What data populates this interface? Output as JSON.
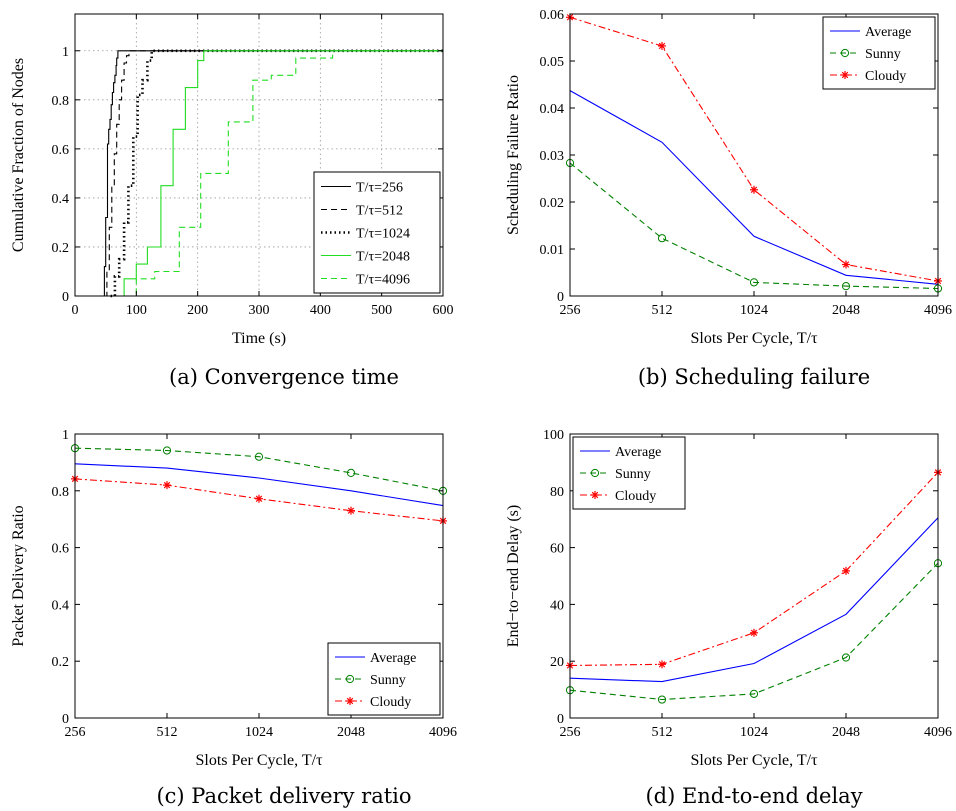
{
  "chart_data": [
    {
      "id": "a",
      "type": "line",
      "caption": "(a) Convergence time",
      "xlabel": "Time (s)",
      "ylabel": "Cumulative Fraction of Nodes",
      "xlim": [
        0,
        600
      ],
      "ylim": [
        0,
        1.15
      ],
      "xticks": [
        0,
        100,
        200,
        300,
        400,
        500,
        600
      ],
      "yticks": [
        0,
        0.2,
        0.4,
        0.6,
        0.8,
        1
      ],
      "x_scale": "linear",
      "grid": true,
      "legend_position": "bottom-right",
      "series": [
        {
          "name": "T/τ=256",
          "color": "#000000",
          "style": "solid",
          "x": [
            46,
            48,
            50,
            53,
            55,
            57,
            59,
            61,
            63,
            65,
            67,
            68,
            70,
            600
          ],
          "y": [
            0,
            0.12,
            0.32,
            0.62,
            0.68,
            0.72,
            0.78,
            0.83,
            0.87,
            0.9,
            0.94,
            0.97,
            1.0,
            1.0
          ]
        },
        {
          "name": "T/τ=512",
          "color": "#000000",
          "style": "dashed",
          "x": [
            49,
            52,
            56,
            60,
            64,
            68,
            72,
            76,
            80,
            84,
            88,
            600
          ],
          "y": [
            0,
            0.1,
            0.28,
            0.45,
            0.58,
            0.7,
            0.8,
            0.88,
            0.95,
            0.98,
            1.0,
            1.0
          ]
        },
        {
          "name": "T/τ=1024",
          "color": "#000000",
          "style": "dotted",
          "x": [
            58,
            65,
            72,
            80,
            87,
            95,
            102,
            110,
            118,
            125,
            600
          ],
          "y": [
            0,
            0.08,
            0.15,
            0.3,
            0.45,
            0.65,
            0.82,
            0.88,
            0.96,
            1.0,
            1.0
          ]
        },
        {
          "name": "T/τ=2048",
          "color": "#22dd22",
          "style": "solid",
          "x": [
            55,
            80,
            100,
            118,
            140,
            160,
            180,
            200,
            210,
            600
          ],
          "y": [
            0,
            0.07,
            0.13,
            0.2,
            0.45,
            0.68,
            0.85,
            0.96,
            1.0,
            1.0
          ]
        },
        {
          "name": "T/τ=4096",
          "color": "#22dd22",
          "style": "dashed",
          "x": [
            70,
            100,
            130,
            170,
            205,
            250,
            290,
            320,
            360,
            420,
            600
          ],
          "y": [
            0,
            0.07,
            0.1,
            0.28,
            0.5,
            0.71,
            0.88,
            0.9,
            0.97,
            1.0,
            1.0
          ]
        }
      ]
    },
    {
      "id": "b",
      "type": "line",
      "caption": "(b) Scheduling failure",
      "xlabel": "Slots Per Cycle, T/τ",
      "ylabel": "Scheduling Failure Ratio",
      "categories": [
        "256",
        "512",
        "1024",
        "2048",
        "4096"
      ],
      "ylim": [
        0,
        0.06
      ],
      "yticks": [
        "0",
        "0.01",
        "0.02",
        "0.03",
        "0.04",
        "0.05",
        "0.06"
      ],
      "ytick_values": [
        0,
        0.01,
        0.02,
        0.03,
        0.04,
        0.05,
        0.06
      ],
      "grid": false,
      "legend_position": "top-right",
      "series": [
        {
          "name": "Average",
          "color": "#0000ff",
          "style": "solid",
          "marker": "none",
          "values": [
            0.0437,
            0.0327,
            0.0127,
            0.0044,
            0.0025
          ]
        },
        {
          "name": "Sunny",
          "color": "#008000",
          "style": "dashed",
          "marker": "circle",
          "values": [
            0.0283,
            0.0123,
            0.0029,
            0.0021,
            0.0016
          ]
        },
        {
          "name": "Cloudy",
          "color": "#ff0000",
          "style": "dashdot",
          "marker": "star",
          "values": [
            0.0593,
            0.0532,
            0.0226,
            0.0067,
            0.0032
          ]
        }
      ]
    },
    {
      "id": "c",
      "type": "line",
      "caption": "(c) Packet delivery ratio",
      "xlabel": "Slots Per Cycle, T/τ",
      "ylabel": "Packet Delivery Ratio",
      "categories": [
        "256",
        "512",
        "1024",
        "2048",
        "4096"
      ],
      "ylim": [
        0,
        1
      ],
      "yticks": [
        "0",
        "0.2",
        "0.4",
        "0.6",
        "0.8",
        "1"
      ],
      "ytick_values": [
        0,
        0.2,
        0.4,
        0.6,
        0.8,
        1
      ],
      "grid": false,
      "legend_position": "bottom-right",
      "series": [
        {
          "name": "Average",
          "color": "#0000ff",
          "style": "solid",
          "marker": "none",
          "values": [
            0.895,
            0.88,
            0.845,
            0.8,
            0.748
          ]
        },
        {
          "name": "Sunny",
          "color": "#008000",
          "style": "dashed",
          "marker": "circle",
          "values": [
            0.95,
            0.942,
            0.92,
            0.863,
            0.8
          ]
        },
        {
          "name": "Cloudy",
          "color": "#ff0000",
          "style": "dashdot",
          "marker": "star",
          "values": [
            0.842,
            0.82,
            0.772,
            0.73,
            0.694
          ]
        }
      ]
    },
    {
      "id": "d",
      "type": "line",
      "caption": "(d) End-to-end delay",
      "xlabel": "Slots Per Cycle, T/τ",
      "ylabel": "End−to−end Delay (s)",
      "categories": [
        "256",
        "512",
        "1024",
        "2048",
        "4096"
      ],
      "ylim": [
        0,
        100
      ],
      "yticks": [
        "0",
        "20",
        "40",
        "60",
        "80",
        "100"
      ],
      "ytick_values": [
        0,
        20,
        40,
        60,
        80,
        100
      ],
      "grid": false,
      "legend_position": "top-left",
      "series": [
        {
          "name": "Average",
          "color": "#0000ff",
          "style": "solid",
          "marker": "none",
          "values": [
            14,
            12.8,
            19.2,
            36.5,
            70.5
          ]
        },
        {
          "name": "Sunny",
          "color": "#008000",
          "style": "dashed",
          "marker": "circle",
          "values": [
            9.8,
            6.5,
            8.5,
            21.3,
            54.5
          ]
        },
        {
          "name": "Cloudy",
          "color": "#ff0000",
          "style": "dashdot",
          "marker": "star",
          "values": [
            18.5,
            18.9,
            30,
            51.8,
            86.5
          ]
        }
      ]
    }
  ]
}
